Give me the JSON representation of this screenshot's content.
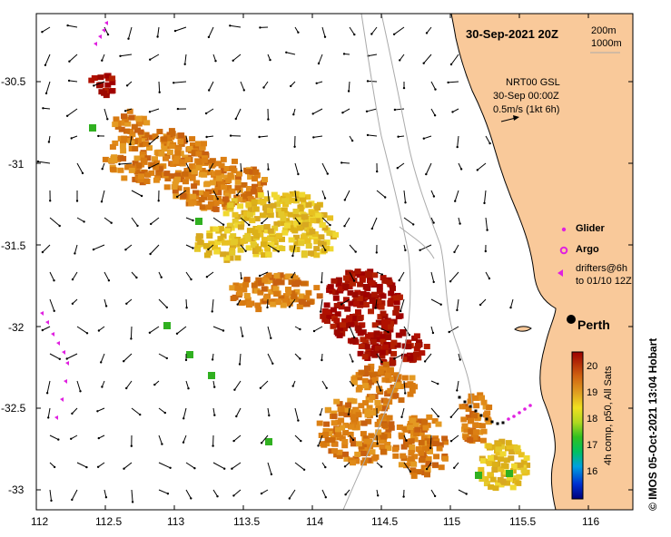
{
  "title": "30-Sep-2021 20Z",
  "depth_legend": {
    "contour1": "200m",
    "contour2": "1000m"
  },
  "current_info": {
    "line1": "NRT00 GSL",
    "line2": "30-Sep 00:00Z",
    "line3": "0.5m/s (1kt 6h)"
  },
  "legend": {
    "glider": "Glider",
    "argo": "Argo",
    "drifters_line1": "drifters@6h",
    "drifters_line2": "to 01/10 12Z"
  },
  "city": "Perth",
  "colorbar": {
    "label": "4h comp, p50, All Sats",
    "ticks": [
      "20",
      "19",
      "18",
      "17",
      "16"
    ],
    "min": 15.5,
    "max": 20.5
  },
  "credit": "© IMOS 05-Oct-2021 13:04 Hobart",
  "axes": {
    "x_ticks": [
      "112",
      "112.5",
      "113",
      "113.5",
      "114",
      "114.5",
      "115",
      "115.5",
      "116"
    ],
    "y_ticks": [
      "-30.5",
      "-31",
      "-31.5",
      "-32",
      "-32.5",
      "-33"
    ]
  },
  "colors": {
    "land": "#f9c99a",
    "glider": "#e020e0",
    "drifter": "#e020e0",
    "coast_line": "#000000",
    "contour": "#aaaaaa"
  }
}
